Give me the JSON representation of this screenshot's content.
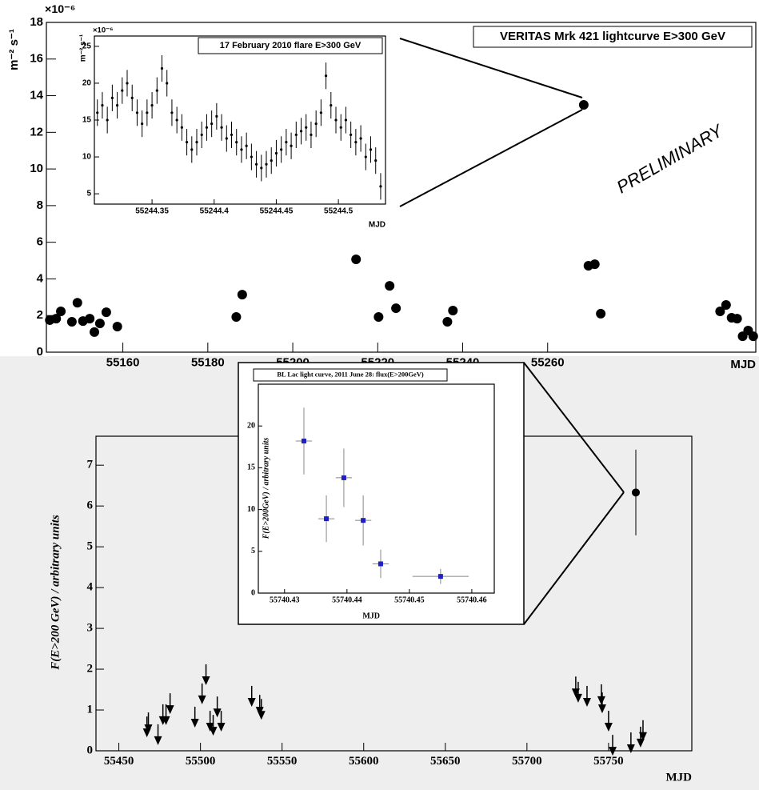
{
  "chart_data": [
    {
      "type": "scatter",
      "title": "VERITAS  Mrk 421  lightcurve  E>300 GeV",
      "y_multiplier": "×10⁻⁶",
      "ylabel": "m⁻² s⁻¹",
      "xlabel": "MJD",
      "annotation": "PRELIMINARY",
      "xlim": [
        55142,
        55309
      ],
      "ylim": [
        0,
        18
      ],
      "xticks": [
        55160,
        55180,
        55200,
        55220,
        55240,
        55260
      ],
      "yticks": [
        0,
        2,
        4,
        6,
        8,
        10,
        12,
        14,
        16,
        18
      ],
      "series": [
        {
          "color": "#000000",
          "marker": "circle",
          "x": [
            55142.8,
            55144.3,
            55145.4,
            55148,
            55149.3,
            55150.6,
            55152.2,
            55153.3,
            55154.6,
            55156.1,
            55158.7,
            55186.7,
            55188.1,
            55214.9,
            55220.2,
            55222.8,
            55224.3,
            55236.4,
            55237.7,
            55268.5,
            55269.6,
            55271.1,
            55272.5,
            55300.6,
            55302,
            55303.3,
            55304.6,
            55305.9,
            55307.2,
            55308.4
          ],
          "values": [
            1.75,
            1.83,
            2.23,
            1.66,
            2.7,
            1.7,
            1.83,
            1.1,
            1.57,
            2.18,
            1.4,
            1.92,
            3.14,
            5.07,
            1.92,
            3.62,
            2.4,
            1.66,
            2.27,
            13.5,
            4.72,
            4.8,
            2.1,
            2.23,
            2.58,
            1.88,
            1.83,
            0.87,
            1.18,
            0.87
          ]
        }
      ]
    },
    {
      "type": "scatter",
      "title": "17 February 2010 flare  E>300 GeV",
      "y_multiplier": "×10⁻⁶",
      "ylabel": "m⁻² s⁻¹",
      "xlabel": "MJD",
      "xlim": [
        55244.3036,
        55244.5379
      ],
      "ylim": [
        3.6,
        26.4
      ],
      "xticks": [
        55244.35,
        55244.4,
        55244.45,
        55244.5
      ],
      "yticks": [
        5,
        10,
        15,
        20,
        25
      ],
      "series": [
        {
          "color": "#000000",
          "marker": "dot",
          "x": [
            55244.306,
            55244.31,
            55244.314,
            55244.318,
            55244.322,
            55244.326,
            55244.33,
            55244.334,
            55244.338,
            55244.342,
            55244.346,
            55244.35,
            55244.354,
            55244.358,
            55244.362,
            55244.366,
            55244.37,
            55244.374,
            55244.378,
            55244.382,
            55244.386,
            55244.39,
            55244.394,
            55244.398,
            55244.402,
            55244.406,
            55244.41,
            55244.414,
            55244.418,
            55244.422,
            55244.426,
            55244.43,
            55244.434,
            55244.438,
            55244.442,
            55244.446,
            55244.45,
            55244.454,
            55244.458,
            55244.462,
            55244.466,
            55244.47,
            55244.474,
            55244.478,
            55244.482,
            55244.486,
            55244.49,
            55244.494,
            55244.498,
            55244.502,
            55244.506,
            55244.51,
            55244.514,
            55244.518,
            55244.522,
            55244.526,
            55244.53,
            55244.534
          ],
          "values": [
            16,
            17,
            15,
            18,
            17,
            19,
            20,
            18,
            16,
            14.5,
            16,
            17,
            19,
            22,
            20,
            16,
            15,
            14,
            12,
            11,
            12,
            13,
            14,
            14.5,
            15.5,
            14,
            12.5,
            13,
            12,
            11,
            11.5,
            10,
            9,
            8.5,
            9,
            9.5,
            10.5,
            11,
            12,
            11.5,
            13,
            13.5,
            14,
            13,
            14.5,
            16,
            21,
            17,
            15,
            14,
            15,
            13,
            12,
            12.5,
            10,
            11,
            9.5,
            6
          ],
          "errors": [
            1.8,
            1.8,
            1.8,
            1.8,
            1.8,
            1.8,
            1.8,
            1.8,
            1.8,
            1.8,
            1.8,
            1.8,
            1.8,
            1.8,
            1.8,
            1.8,
            1.8,
            1.8,
            1.8,
            1.8,
            1.8,
            1.8,
            1.8,
            1.8,
            1.8,
            1.8,
            1.8,
            1.8,
            1.8,
            1.8,
            1.8,
            1.8,
            1.8,
            1.8,
            1.8,
            1.8,
            1.8,
            1.8,
            1.8,
            1.8,
            1.8,
            1.8,
            1.8,
            1.8,
            1.8,
            1.8,
            1.8,
            1.8,
            1.8,
            1.8,
            1.8,
            1.8,
            1.8,
            1.8,
            1.8,
            1.8,
            1.8,
            1.8
          ]
        }
      ]
    },
    {
      "type": "scatter",
      "ylabel": "F(E>200 GeV) / arbitrary units",
      "xlabel": "MJD",
      "xlim": [
        55436,
        55801
      ],
      "ylim": [
        0,
        7.71
      ],
      "xticks": [
        55450,
        55500,
        55550,
        55600,
        55650,
        55700,
        55750
      ],
      "yticks": [
        0,
        1,
        2,
        3,
        4,
        5,
        6,
        7
      ],
      "series": [
        {
          "color": "#000000",
          "marker": "arrow",
          "x": [
            55467.2,
            55468.1,
            55474,
            55477,
            55478.9,
            55481.4,
            55496.6,
            55501,
            55503.4,
            55505.9,
            55507.8,
            55510.3,
            55512.7,
            55531.4,
            55536.3,
            55537.3,
            55729.9,
            55731.4,
            55736.8,
            55745.6,
            55746.1,
            55750,
            55752.5,
            55763.7,
            55769.6,
            55771.1
          ],
          "values": [
            0.84,
            0.94,
            0.65,
            1.14,
            1.14,
            1.41,
            1.08,
            1.65,
            2.12,
            0.98,
            0.88,
            1.33,
            0.98,
            1.59,
            1.37,
            1.27,
            1.82,
            1.69,
            1.59,
            1.63,
            1.43,
            0.98,
            0.39,
            0.45,
            0.59,
            0.75
          ]
        },
        {
          "color": "#000000",
          "marker": "circle",
          "x": [
            55766.7
          ],
          "values": [
            6.33
          ],
          "errors": [
            1.05
          ]
        }
      ]
    },
    {
      "type": "scatter",
      "title": "BL Lac light curve, 2011 June 28: flux(E>200GeV)",
      "ylabel": "F(E>200GeV) / arbitrary units",
      "xlabel": "MJD",
      "xlim": [
        55740.4258,
        55740.4636
      ],
      "ylim": [
        0,
        25
      ],
      "xticks": [
        55740.43,
        55740.44,
        55740.45,
        55740.46
      ],
      "yticks": [
        0,
        5,
        10,
        15,
        20
      ],
      "series": [
        {
          "color": "#2020c0",
          "marker": "square",
          "x": [
            55740.4331,
            55740.4367,
            55740.4395,
            55740.4426,
            55740.4454,
            55740.455
          ],
          "values": [
            18.2,
            8.9,
            13.8,
            8.7,
            3.5,
            2.0
          ],
          "errors": [
            4,
            2.8,
            3.5,
            3,
            1.7,
            0.9
          ],
          "xerrors": [
            0.0013,
            0.0013,
            0.0013,
            0.0013,
            0.0013,
            0.0045
          ]
        }
      ]
    }
  ]
}
